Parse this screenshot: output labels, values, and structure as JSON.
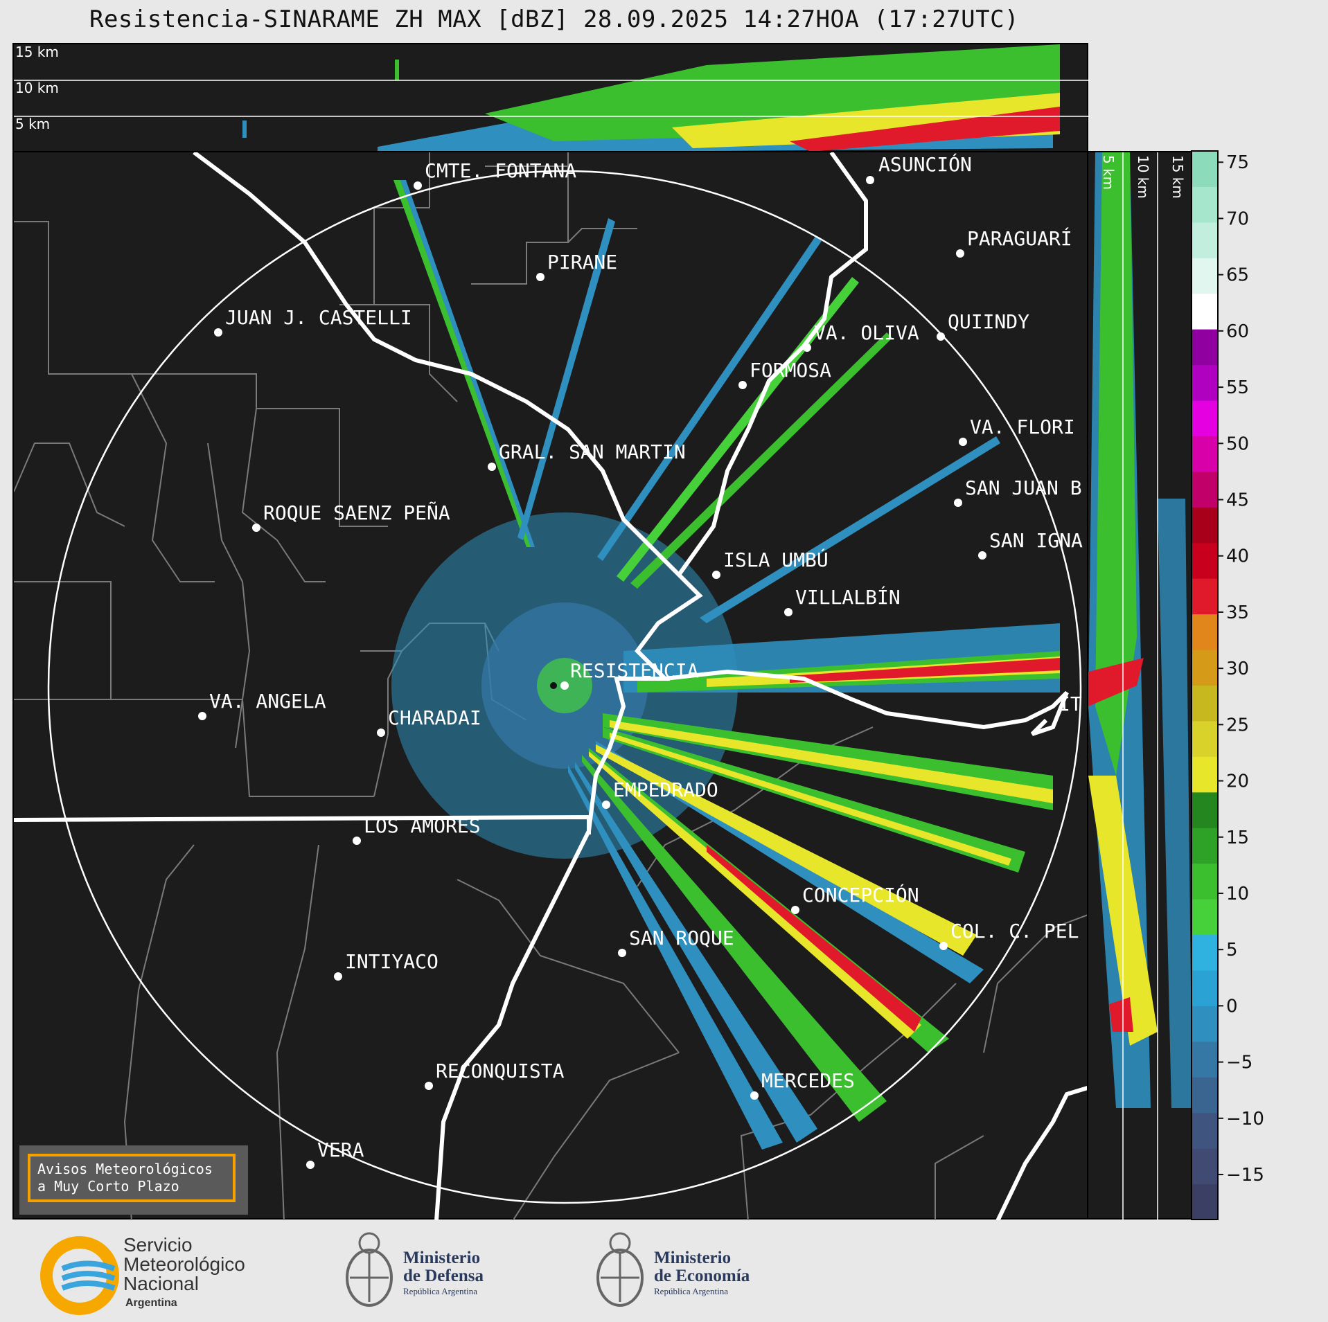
{
  "title": "Resistencia-SINARAME ZH MAX [dBZ] 28.09.2025 14:27HOA (17:27UTC)",
  "top_panel": {
    "alt_labels": [
      "15 km",
      "10 km",
      "5 km"
    ]
  },
  "side_panel": {
    "alt_labels": [
      "5 km",
      "10 km",
      "15 km"
    ]
  },
  "colorbar": {
    "ticks": [
      "75",
      "70",
      "65",
      "60",
      "55",
      "50",
      "45",
      "40",
      "35",
      "30",
      "25",
      "20",
      "15",
      "10",
      "5",
      "0",
      "−5",
      "−10",
      "−15"
    ],
    "colors": [
      "#3b3f63",
      "#404a73",
      "#3f5580",
      "#3a6590",
      "#3578a6",
      "#2f8fbe",
      "#2aa3d4",
      "#2fb2e0",
      "#46d13a",
      "#3cbf2f",
      "#2ea226",
      "#23861e",
      "#e8e62a",
      "#d8d22a",
      "#c8b820",
      "#d49a18",
      "#e0861a",
      "#e01a2a",
      "#c8001e",
      "#a8001a",
      "#c2006a",
      "#d800a8",
      "#e400e0",
      "#b000c0",
      "#9000a0",
      "#ffffff",
      "#e0f6ee",
      "#c2eede",
      "#a6e6cc",
      "#8cdcbc"
    ],
    "value_range": [
      -19,
      76
    ],
    "unit": "dBZ"
  },
  "cities": [
    {
      "name": "ASUNCIÓN"
    },
    {
      "name": "CMTE. FONTANA"
    },
    {
      "name": "PARAGUARÍ"
    },
    {
      "name": "PIRANE"
    },
    {
      "name": "JUAN J. CASTELLI"
    },
    {
      "name": "QUIINDY"
    },
    {
      "name": "VA. OLIVA"
    },
    {
      "name": "FORMOSA"
    },
    {
      "name": "VA. FLORI"
    },
    {
      "name": "GRAL. SAN MARTIN"
    },
    {
      "name": "SAN JUAN B"
    },
    {
      "name": "ROQUE SAENZ PEÑA"
    },
    {
      "name": "SAN IGNA"
    },
    {
      "name": "ISLA UMBÚ"
    },
    {
      "name": "VILLALBÍN"
    },
    {
      "name": "RESISTENCIA"
    },
    {
      "name": "VA. ANGELA"
    },
    {
      "name": "CHARADAI"
    },
    {
      "name": "IT"
    },
    {
      "name": "EMPEDRADO"
    },
    {
      "name": "LOS AMORES"
    },
    {
      "name": "CONCEPCIÓN"
    },
    {
      "name": "COL. C. PEL"
    },
    {
      "name": "SAN ROQUE"
    },
    {
      "name": "INTIYACO"
    },
    {
      "name": "RECONQUISTA"
    },
    {
      "name": "MERCEDES"
    },
    {
      "name": "VERA"
    }
  ],
  "avisos": {
    "line1": "Avisos Meteorológicos",
    "line2": "a Muy Corto Plazo"
  },
  "footer": {
    "smn": {
      "line1": "Servicio",
      "line2": "Meteorológico",
      "line3": "Nacional",
      "line4": "Argentina"
    },
    "defensa": {
      "line1": "Ministerio",
      "line2": "de Defensa",
      "line3": "República Argentina"
    },
    "economia": {
      "line1": "Ministerio",
      "line2": "de Economía",
      "line3": "República Argentina"
    }
  }
}
